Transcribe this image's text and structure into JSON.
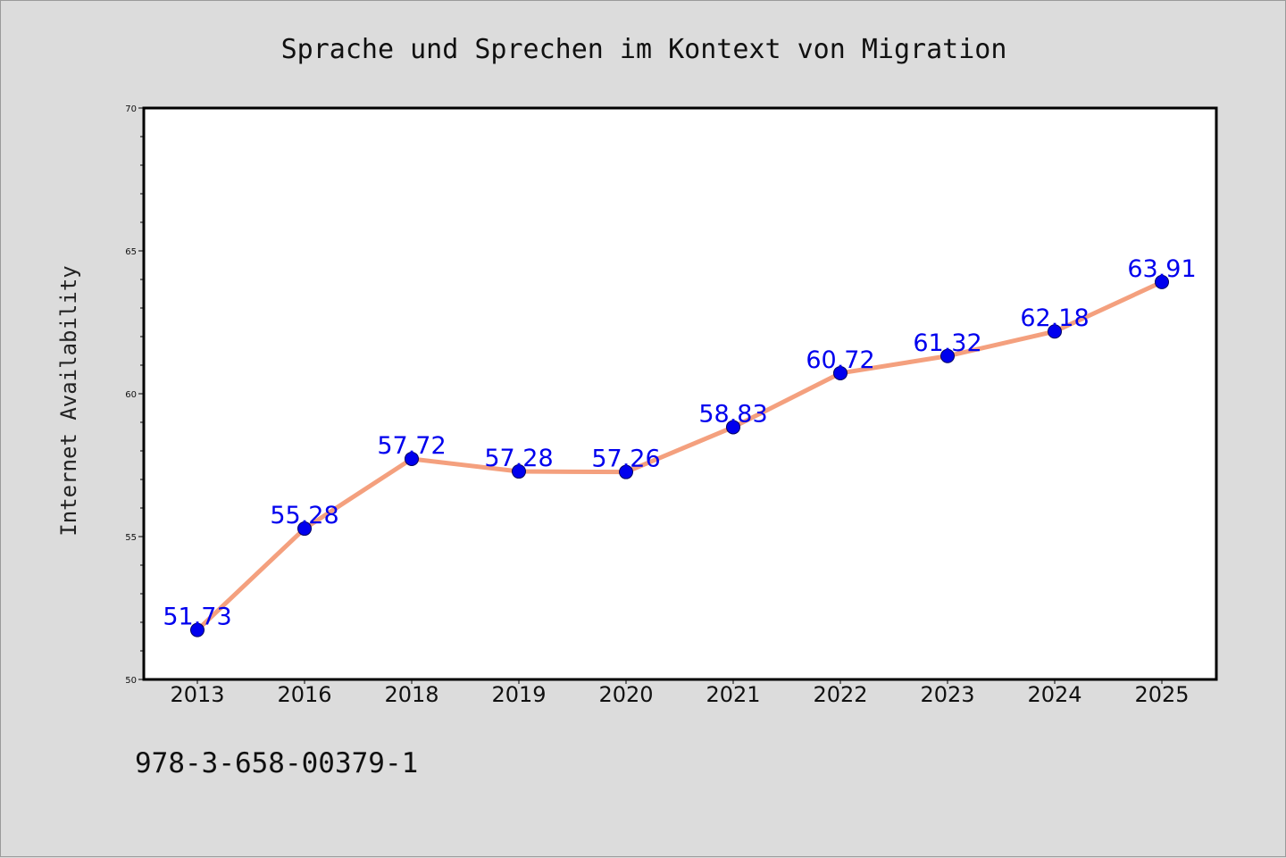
{
  "chart_data": {
    "type": "line",
    "title": "Sprache und Sprechen im Kontext von Migration",
    "xlabel": "",
    "ylabel": "Internet Availability",
    "categories": [
      "2013",
      "2016",
      "2018",
      "2019",
      "2020",
      "2021",
      "2022",
      "2023",
      "2024",
      "2025"
    ],
    "series": [
      {
        "values": [
          51.73,
          55.28,
          57.72,
          57.28,
          57.26,
          58.83,
          60.72,
          61.32,
          62.18,
          63.91
        ],
        "labels": [
          "51.73",
          "55.28",
          "57.72",
          "57.28",
          "57.26",
          "58.83",
          "60.72",
          "61.32",
          "62.18",
          "63.91"
        ]
      }
    ],
    "ylim": [
      50,
      70
    ],
    "yticks": [
      "50",
      "55",
      "60",
      "65",
      "70"
    ],
    "grid": false,
    "legend": "none",
    "colors": {
      "line": "#f4a07e",
      "marker": "#0000ee",
      "marker_edge": "#000060",
      "data_label": "#0000ee",
      "plot_background": "#ffffff",
      "figure_background": "#dcdcdc"
    }
  },
  "footnote": "978-3-658-00379-1"
}
